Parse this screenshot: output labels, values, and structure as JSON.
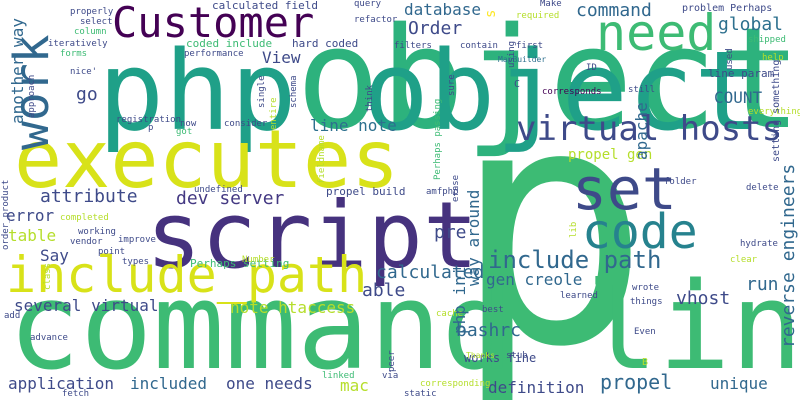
{
  "wordcloud": {
    "colors": {
      "background": "#ffffff",
      "palette": [
        "#440154",
        "#472c7a",
        "#3b518b",
        "#2c718e",
        "#21908d",
        "#27ad81",
        "#5cc863",
        "#aadc32",
        "#dde318",
        "#fde725"
      ]
    },
    "words": [
      {
        "key": "p",
        "text": "p",
        "color": "#3dbb74",
        "vertical": false
      },
      {
        "key": "command-line",
        "text": "command line",
        "color": "#3dbb74",
        "vertical": false
      },
      {
        "key": "object",
        "text": "object",
        "color": "#2db27d",
        "vertical": false
      },
      {
        "key": "php-object",
        "text": "php object",
        "color": "#1fa088",
        "vertical": false
      },
      {
        "key": "executes",
        "text": "executes",
        "color": "#d8e219",
        "vertical": false
      },
      {
        "key": "script",
        "text": "script",
        "color": "#46327e",
        "vertical": false
      },
      {
        "key": "include-path-underscore",
        "text": "include_path",
        "color": "#d8e219",
        "vertical": false
      },
      {
        "key": "customer",
        "text": "Customer",
        "color": "#440154",
        "vertical": false
      },
      {
        "key": "need",
        "text": "need",
        "color": "#3dbb74",
        "vertical": false
      },
      {
        "key": "set",
        "text": "set",
        "color": "#3e4a89",
        "vertical": false
      },
      {
        "key": "code",
        "text": "code",
        "color": "#26828e",
        "vertical": false
      },
      {
        "key": "virtual-hosts",
        "text": "virtual hosts",
        "color": "#3e4a89",
        "vertical": false
      },
      {
        "key": "work",
        "text": "work",
        "color": "#31688e",
        "vertical": true
      },
      {
        "key": "include-path",
        "text": "include path",
        "color": "#31688e",
        "vertical": false
      },
      {
        "key": "order",
        "text": "Order",
        "color": "#3e4a89",
        "vertical": false
      },
      {
        "key": "command",
        "text": "command",
        "color": "#31688e",
        "vertical": false
      },
      {
        "key": "database",
        "text": "database",
        "color": "#31688e",
        "vertical": false
      },
      {
        "key": "global",
        "text": "global",
        "color": "#2d708e",
        "vertical": false
      },
      {
        "key": "view",
        "text": "View",
        "color": "#3e4a89",
        "vertical": false
      },
      {
        "key": "line-note",
        "text": "line note",
        "color": "#2d708e",
        "vertical": false
      },
      {
        "key": "go",
        "text": "go",
        "color": "#3e4a89",
        "vertical": false
      },
      {
        "key": "count",
        "text": "COUNT",
        "color": "#31688e",
        "vertical": false
      },
      {
        "key": "propel-gen",
        "text": "propel gen",
        "color": "#b5de2b",
        "vertical": false
      },
      {
        "key": "attribute",
        "text": "attribute",
        "color": "#3e4a89",
        "vertical": false
      },
      {
        "key": "dev-server",
        "text": "dev server",
        "color": "#443983",
        "vertical": false
      },
      {
        "key": "error",
        "text": "error",
        "color": "#3e4a89",
        "vertical": false
      },
      {
        "key": "table",
        "text": "table",
        "color": "#b5de2b",
        "vertical": false
      },
      {
        "key": "say",
        "text": "Say",
        "color": "#3e4a89",
        "vertical": false
      },
      {
        "key": "pre",
        "text": "pre",
        "color": "#3e4a89",
        "vertical": false
      },
      {
        "key": "calculated",
        "text": "calculated",
        "color": "#31688e",
        "vertical": false
      },
      {
        "key": "able",
        "text": "able",
        "color": "#3e4a89",
        "vertical": false
      },
      {
        "key": "gen-creole",
        "text": "gen creole",
        "color": "#31688e",
        "vertical": false
      },
      {
        "key": "bashrc",
        "text": "bashrc",
        "color": "#31688e",
        "vertical": false
      },
      {
        "key": "run",
        "text": "run",
        "color": "#31688e",
        "vertical": false
      },
      {
        "key": "vhost",
        "text": "vhost",
        "color": "#3e4a89",
        "vertical": false
      },
      {
        "key": "several-virtual",
        "text": "several virtual",
        "color": "#3e4a89",
        "vertical": false
      },
      {
        "key": "note-htaccess",
        "text": "note htaccess",
        "color": "#b5de2b",
        "vertical": false
      },
      {
        "key": "application",
        "text": "application",
        "color": "#3e4a89",
        "vertical": false
      },
      {
        "key": "included",
        "text": "included",
        "color": "#31688e",
        "vertical": false
      },
      {
        "key": "one-needs",
        "text": "one needs",
        "color": "#3e4a89",
        "vertical": false
      },
      {
        "key": "mac",
        "text": "mac",
        "color": "#b5de2b",
        "vertical": false
      },
      {
        "key": "definition",
        "text": "definition",
        "color": "#3e4a89",
        "vertical": false
      },
      {
        "key": "propel",
        "text": "propel",
        "color": "#31688e",
        "vertical": false
      },
      {
        "key": "unique",
        "text": "unique",
        "color": "#31688e",
        "vertical": false
      },
      {
        "key": "works-fine",
        "text": "works fine",
        "color": "#3e4a89",
        "vertical": false
      },
      {
        "key": "calculated-field",
        "text": "calculated field",
        "color": "#3e4a89",
        "vertical": false
      },
      {
        "key": "coded-include",
        "text": "coded include",
        "color": "#3dbb74",
        "vertical": false
      },
      {
        "key": "hard-coded",
        "text": "hard coded",
        "color": "#3e4a89",
        "vertical": false
      },
      {
        "key": "line-param",
        "text": "line param",
        "color": "#3e4a89",
        "vertical": false
      },
      {
        "key": "problem-perhaps",
        "text": "problem Perhaps",
        "color": "#3e4a89",
        "vertical": false
      },
      {
        "key": "propel-build",
        "text": "propel build",
        "color": "#3e4a89",
        "vertical": false
      },
      {
        "key": "perhaps-setting",
        "text": "Perhaps setting",
        "color": "#3dbb74",
        "vertical": false
      },
      {
        "key": "mapbuilder",
        "text": "MapBuilder",
        "color": "#2d708e",
        "vertical": false
      },
      {
        "key": "amfphp",
        "text": "amfphp",
        "color": "#3e4a89",
        "vertical": false
      },
      {
        "key": "corresponds",
        "text": "corresponds",
        "color": "#440154",
        "vertical": false
      },
      {
        "key": "make",
        "text": "Make",
        "color": "#3e4a89",
        "vertical": false
      },
      {
        "key": "query",
        "text": "query",
        "color": "#3e4a89",
        "vertical": false
      },
      {
        "key": "refactor",
        "text": "refactor",
        "color": "#3e4a89",
        "vertical": false
      },
      {
        "key": "required",
        "text": "required",
        "color": "#b5de2b",
        "vertical": false
      },
      {
        "key": "first",
        "text": "first",
        "color": "#3e4a89",
        "vertical": false
      },
      {
        "key": "filters",
        "text": "filters",
        "color": "#3e4a89",
        "vertical": false
      },
      {
        "key": "contain",
        "text": "contain",
        "color": "#3e4a89",
        "vertical": false
      },
      {
        "key": "still",
        "text": "still",
        "color": "#3e4a89",
        "vertical": false
      },
      {
        "key": "shipped",
        "text": "shipped",
        "color": "#3dbb74",
        "vertical": false
      },
      {
        "key": "everything",
        "text": "everything",
        "color": "#b5de2b",
        "vertical": false
      },
      {
        "key": "id",
        "text": "ID",
        "color": "#3e4a89",
        "vertical": false
      },
      {
        "key": "c",
        "text": "C",
        "color": "#3e4a89",
        "vertical": false
      },
      {
        "key": "b",
        "text": "B",
        "color": "#b5de2b",
        "vertical": false
      },
      {
        "key": "properly",
        "text": "properly",
        "color": "#3e4a89",
        "vertical": false
      },
      {
        "key": "select",
        "text": "select",
        "color": "#3e4a89",
        "vertical": false
      },
      {
        "key": "iteratively",
        "text": "iteratively",
        "color": "#3e4a89",
        "vertical": false
      },
      {
        "key": "forms",
        "text": "forms",
        "color": "#3dbb74",
        "vertical": false
      },
      {
        "key": "nice",
        "text": "nice'",
        "color": "#3e4a89",
        "vertical": false
      },
      {
        "key": "registration",
        "text": "registration",
        "color": "#3e4a89",
        "vertical": false
      },
      {
        "key": "now",
        "text": "now",
        "color": "#3e4a89",
        "vertical": false
      },
      {
        "key": "got",
        "text": "got",
        "color": "#3dbb74",
        "vertical": false
      },
      {
        "key": "consider",
        "text": "consider",
        "color": "#3e4a89",
        "vertical": false
      },
      {
        "key": "performance",
        "text": "performance",
        "color": "#3e4a89",
        "vertical": false
      },
      {
        "key": "undefined",
        "text": "undefined",
        "color": "#3e4a89",
        "vertical": false
      },
      {
        "key": "completed",
        "text": "completed",
        "color": "#b5de2b",
        "vertical": false
      },
      {
        "key": "working",
        "text": "working",
        "color": "#3e4a89",
        "vertical": false
      },
      {
        "key": "vendor",
        "text": "vendor",
        "color": "#3e4a89",
        "vertical": false
      },
      {
        "key": "improve",
        "text": "improve",
        "color": "#3e4a89",
        "vertical": false
      },
      {
        "key": "point",
        "text": "point",
        "color": "#3e4a89",
        "vertical": false
      },
      {
        "key": "types",
        "text": "types",
        "color": "#3e4a89",
        "vertical": false
      },
      {
        "key": "number",
        "text": "Number",
        "color": "#b5de2b",
        "vertical": false
      },
      {
        "key": "via",
        "text": "via",
        "color": "#3e4a89",
        "vertical": false
      },
      {
        "key": "cache",
        "text": "cache",
        "color": "#b5de2b",
        "vertical": false
      },
      {
        "key": "best",
        "text": "best",
        "color": "#3e4a89",
        "vertical": false
      },
      {
        "key": "learned",
        "text": "learned",
        "color": "#3e4a89",
        "vertical": false
      },
      {
        "key": "things",
        "text": "things",
        "color": "#3e4a89",
        "vertical": false
      },
      {
        "key": "wrote",
        "text": "wrote",
        "color": "#3e4a89",
        "vertical": false
      },
      {
        "key": "even",
        "text": "Even",
        "color": "#3e4a89",
        "vertical": false
      },
      {
        "key": "stub",
        "text": "stub",
        "color": "#3e4a89",
        "vertical": false
      },
      {
        "key": "thanks",
        "text": "Thanks",
        "color": "#b5de2b",
        "vertical": false
      },
      {
        "key": "corresponding",
        "text": "corresponding",
        "color": "#b5de2b",
        "vertical": false
      },
      {
        "key": "static",
        "text": "static",
        "color": "#3e4a89",
        "vertical": false
      },
      {
        "key": "linked",
        "text": "linked",
        "color": "#3dbb74",
        "vertical": false
      },
      {
        "key": "fetch",
        "text": "fetch",
        "color": "#3e4a89",
        "vertical": false
      },
      {
        "key": "advance",
        "text": "advance",
        "color": "#3e4a89",
        "vertical": false
      },
      {
        "key": "add",
        "text": "add",
        "color": "#3e4a89",
        "vertical": false
      },
      {
        "key": "folder",
        "text": "folder",
        "color": "#3e4a89",
        "vertical": false
      },
      {
        "key": "delete",
        "text": "delete",
        "color": "#3e4a89",
        "vertical": false
      },
      {
        "key": "hydrate",
        "text": "hydrate",
        "color": "#3e4a89",
        "vertical": false
      },
      {
        "key": "clear",
        "text": "clear",
        "color": "#b5de2b",
        "vertical": false
      },
      {
        "key": "help",
        "text": "help",
        "color": "#b5de2b",
        "vertical": false
      },
      {
        "key": "p-small",
        "text": "p",
        "color": "#3e4a89",
        "vertical": false
      },
      {
        "key": "column",
        "text": "column",
        "color": "#3dbb74",
        "vertical": false
      },
      {
        "key": "another-way",
        "text": "another way",
        "color": "#31688e",
        "vertical": true
      },
      {
        "key": "way-around",
        "text": "way around",
        "color": "#31688e",
        "vertical": true
      },
      {
        "key": "apache",
        "text": "apache",
        "color": "#31688e",
        "vertical": true
      },
      {
        "key": "php-ini",
        "text": "php ini",
        "color": "#31688e",
        "vertical": true
      },
      {
        "key": "reverse-engineers",
        "text": "reverse engineers",
        "color": "#31688e",
        "vertical": true
      },
      {
        "key": "setting-something",
        "text": "setting something",
        "color": "#3e4a89",
        "vertical": true
      },
      {
        "key": "perhaps-passing",
        "text": "Perhaps passing",
        "color": "#3dbb74",
        "vertical": true
      },
      {
        "key": "s",
        "text": "s",
        "color": "#fde725",
        "vertical": true
      },
      {
        "key": "approach",
        "text": "approach",
        "color": "#3e4a89",
        "vertical": true
      },
      {
        "key": "order-product",
        "text": "order_product",
        "color": "#3e4a89",
        "vertical": true
      },
      {
        "key": "class",
        "text": "class",
        "color": "#b5de2b",
        "vertical": true
      },
      {
        "key": "single",
        "text": "single",
        "color": "#3e4a89",
        "vertical": true
      },
      {
        "key": "schema",
        "text": "schema",
        "color": "#3e4a89",
        "vertical": true
      },
      {
        "key": "entire",
        "text": "entire",
        "color": "#b5de2b",
        "vertical": true
      },
      {
        "key": "think",
        "text": "think",
        "color": "#3e4a89",
        "vertical": true
      },
      {
        "key": "using",
        "text": "using",
        "color": "#3e4a89",
        "vertical": true
      },
      {
        "key": "sure",
        "text": "sure",
        "color": "#3e4a89",
        "vertical": true
      },
      {
        "key": "used",
        "text": "used",
        "color": "#3e4a89",
        "vertical": true
      },
      {
        "key": "erase",
        "text": "erase",
        "color": "#3e4a89",
        "vertical": true
      },
      {
        "key": "lib",
        "text": "lib",
        "color": "#b5de2b",
        "vertical": true
      },
      {
        "key": "peer",
        "text": "peer",
        "color": "#3e4a89",
        "vertical": true
      },
      {
        "key": "fieldname",
        "text": "fieldname",
        "color": "#b5de2b",
        "vertical": true
      }
    ]
  }
}
